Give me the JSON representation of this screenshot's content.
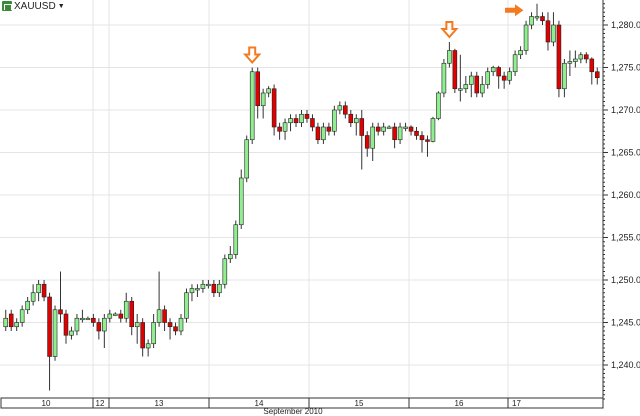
{
  "header": {
    "symbol": "XAUUSD",
    "dropdown_icon": "caret-down-icon"
  },
  "chart_data": {
    "type": "candlestick",
    "title": "",
    "symbol": "XAUUSD",
    "ylim": [
      1236,
      1283
    ],
    "yticks": [
      1240,
      1245,
      1250,
      1255,
      1260,
      1265,
      1270,
      1275,
      1280
    ],
    "ytick_labels": [
      "1,240.00",
      "1,245.00",
      "1,250.00",
      "1,255.00",
      "1,260.00",
      "1,265.00",
      "1,270.00",
      "1,275.00",
      "1,280.00"
    ],
    "xtick_labels": [
      "10",
      "12",
      "13",
      "14",
      "15",
      "16",
      "17"
    ],
    "xlabel": "September 2010",
    "grid": true,
    "colors": {
      "up": "#90ee90",
      "down": "#e00000",
      "wick": "#333333",
      "annotation": "#f47a20",
      "grid": "#e4e4e4"
    },
    "annotations": [
      {
        "type": "arrow-down",
        "color": "#f47a20"
      },
      {
        "type": "arrow-down",
        "color": "#f47a20"
      },
      {
        "type": "arrow-right",
        "color": "#f47a20"
      }
    ],
    "candles_ohlc": [
      [
        1244.5,
        1246.5,
        1244,
        1245.5
      ],
      [
        1246,
        1246.5,
        1244,
        1244.5
      ],
      [
        1244.5,
        1245.5,
        1244,
        1245
      ],
      [
        1245,
        1247,
        1244.5,
        1246.5
      ],
      [
        1246.5,
        1248,
        1246,
        1247.5
      ],
      [
        1247.5,
        1249.5,
        1247,
        1248.5
      ],
      [
        1248.5,
        1250,
        1247.5,
        1249.5
      ],
      [
        1249.5,
        1250,
        1247.5,
        1248
      ],
      [
        1248,
        1248.5,
        1237,
        1241
      ],
      [
        1241,
        1247,
        1240.5,
        1246.5
      ],
      [
        1246.5,
        1251,
        1245,
        1246
      ],
      [
        1246,
        1246.5,
        1242.5,
        1243.5
      ],
      [
        1243.5,
        1244.5,
        1243,
        1244
      ],
      [
        1244,
        1246,
        1243.5,
        1245.5
      ],
      [
        1245.5,
        1246.5,
        1245,
        1245.5
      ],
      [
        1245.5,
        1245.7,
        1245.3,
        1245.5
      ],
      [
        1245.5,
        1246,
        1244.5,
        1245
      ],
      [
        1245,
        1245.5,
        1243,
        1244
      ],
      [
        1244,
        1246,
        1242,
        1245.5
      ],
      [
        1245.5,
        1246.5,
        1245,
        1246
      ],
      [
        1246,
        1246.2,
        1245.8,
        1246
      ],
      [
        1246,
        1246.5,
        1245,
        1245.5
      ],
      [
        1245.5,
        1248.5,
        1245,
        1247.5
      ],
      [
        1247.5,
        1248,
        1243.5,
        1244.5
      ],
      [
        1244.5,
        1246,
        1242.5,
        1245
      ],
      [
        1245,
        1245.5,
        1241,
        1242
      ],
      [
        1242,
        1243,
        1241,
        1242.5
      ],
      [
        1242.5,
        1246,
        1242,
        1245
      ],
      [
        1245,
        1251,
        1244.5,
        1246.5
      ],
      [
        1246.5,
        1247,
        1244,
        1245
      ],
      [
        1245,
        1245.5,
        1243,
        1244.5
      ],
      [
        1244.5,
        1245,
        1243.5,
        1244
      ],
      [
        1244,
        1246,
        1243.5,
        1245.5
      ],
      [
        1245.5,
        1249,
        1245,
        1248.5
      ],
      [
        1248.5,
        1249.5,
        1247.5,
        1249
      ],
      [
        1249,
        1249.5,
        1248,
        1249
      ],
      [
        1249,
        1250,
        1248.5,
        1249.5
      ],
      [
        1249.5,
        1250,
        1249,
        1249.5
      ],
      [
        1249.5,
        1250,
        1248,
        1248.5
      ],
      [
        1248.5,
        1250,
        1248,
        1249.5
      ],
      [
        1249.5,
        1253,
        1249,
        1252.5
      ],
      [
        1252.5,
        1254,
        1252,
        1253
      ],
      [
        1253,
        1257,
        1252.5,
        1256.5
      ],
      [
        1256.5,
        1263,
        1256,
        1262
      ],
      [
        1262,
        1267,
        1261.5,
        1266.5
      ],
      [
        1266.5,
        1275,
        1266,
        1274.5
      ],
      [
        1274.5,
        1275,
        1269,
        1270.5
      ],
      [
        1270.5,
        1272.5,
        1269,
        1272
      ],
      [
        1272,
        1272.8,
        1271.5,
        1272.5
      ],
      [
        1272.5,
        1273,
        1267,
        1268
      ],
      [
        1268,
        1268.5,
        1266.5,
        1267.5
      ],
      [
        1267.5,
        1269,
        1266.5,
        1268.5
      ],
      [
        1268.5,
        1269.5,
        1267.5,
        1269
      ],
      [
        1269,
        1269.5,
        1268,
        1268.5
      ],
      [
        1268.5,
        1270,
        1268,
        1269.5
      ],
      [
        1269.5,
        1270,
        1268.5,
        1269
      ],
      [
        1269,
        1269.5,
        1267.5,
        1268
      ],
      [
        1268,
        1268.5,
        1266,
        1266.5
      ],
      [
        1266.5,
        1268.5,
        1266,
        1268
      ],
      [
        1268,
        1268.5,
        1267,
        1267.5
      ],
      [
        1267.5,
        1270.5,
        1267,
        1270
      ],
      [
        1270,
        1271,
        1269.5,
        1270.5
      ],
      [
        1270.5,
        1271,
        1269,
        1269.5
      ],
      [
        1269.5,
        1270,
        1268,
        1268.5
      ],
      [
        1268.5,
        1269.5,
        1267,
        1269
      ],
      [
        1269,
        1270,
        1263,
        1267
      ],
      [
        1267,
        1267.5,
        1264.5,
        1265.5
      ],
      [
        1265.5,
        1268.5,
        1264,
        1268
      ],
      [
        1268,
        1268.5,
        1267,
        1267.5
      ],
      [
        1267.5,
        1268.5,
        1267,
        1268
      ],
      [
        1268,
        1268.2,
        1267.8,
        1268
      ],
      [
        1268,
        1268.5,
        1265.5,
        1266.5
      ],
      [
        1266.5,
        1268.5,
        1266,
        1268
      ],
      [
        1268,
        1268.5,
        1267.5,
        1268
      ],
      [
        1268,
        1268.2,
        1267,
        1267.5
      ],
      [
        1267.5,
        1268,
        1266.5,
        1267
      ],
      [
        1267,
        1267.5,
        1265,
        1266.5
      ],
      [
        1266.5,
        1267,
        1264.5,
        1266.3
      ],
      [
        1266.3,
        1269.2,
        1266.2,
        1269
      ],
      [
        1269,
        1272.2,
        1268.8,
        1272
      ],
      [
        1272,
        1276,
        1271.5,
        1275.5
      ],
      [
        1275.5,
        1278,
        1275,
        1277
      ],
      [
        1277,
        1277.2,
        1272,
        1272.5
      ],
      [
        1272.5,
        1276.5,
        1271,
        1272.5
      ],
      [
        1272.5,
        1274,
        1272,
        1273
      ],
      [
        1273,
        1274.5,
        1271.5,
        1274
      ],
      [
        1274,
        1274.5,
        1271.5,
        1272
      ],
      [
        1272,
        1274,
        1271.5,
        1273
      ],
      [
        1273,
        1275,
        1272.5,
        1274.5
      ],
      [
        1274.5,
        1275.2,
        1274,
        1275
      ],
      [
        1275,
        1275.2,
        1272.5,
        1274
      ],
      [
        1274,
        1274.5,
        1272.5,
        1273.5
      ],
      [
        1273.5,
        1275,
        1273,
        1274.5
      ],
      [
        1274.5,
        1277,
        1274,
        1276.5
      ],
      [
        1276.5,
        1277.5,
        1276,
        1277
      ],
      [
        1277,
        1280.5,
        1276.5,
        1280
      ],
      [
        1280,
        1281.5,
        1279.5,
        1281
      ],
      [
        1281,
        1282.5,
        1280.5,
        1281
      ],
      [
        1281,
        1281.5,
        1280,
        1280.5
      ],
      [
        1280.5,
        1281.5,
        1277,
        1278
      ],
      [
        1278,
        1281.5,
        1277.5,
        1280
      ],
      [
        1280,
        1280.5,
        1271.5,
        1272.5
      ],
      [
        1272.5,
        1276,
        1271.5,
        1275.5
      ],
      [
        1275.5,
        1277,
        1274,
        1275.7
      ],
      [
        1275.7,
        1277,
        1275,
        1276
      ],
      [
        1276,
        1276.8,
        1275.5,
        1276.5
      ],
      [
        1276.5,
        1276.8,
        1275.5,
        1276
      ],
      [
        1276,
        1276.2,
        1273,
        1274.5
      ],
      [
        1274.5,
        1275,
        1273,
        1273.8
      ]
    ]
  }
}
